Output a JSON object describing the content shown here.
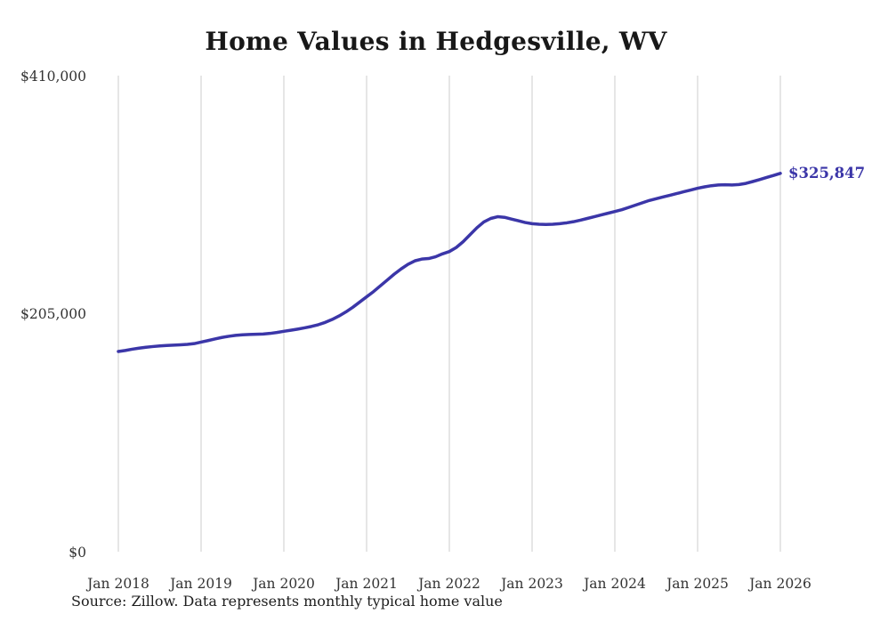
{
  "page": {
    "background": "#ffffff"
  },
  "chart_data": {
    "type": "line",
    "title": "Home Values in Hedgesville, WV",
    "source_note": "Source: Zillow. Data represents monthly typical home value",
    "series_name": "Monthly typical home value",
    "line_color": "#3b36a8",
    "grid_color": "#cccccc",
    "tick_color": "#333333",
    "end_label": "$325,847",
    "end_value": 325847,
    "ylim": [
      0,
      410000
    ],
    "grid": "vertical-only",
    "legend": "none",
    "y_ticks": [
      {
        "value": 410000,
        "label": "$410,000"
      },
      {
        "value": 205000,
        "label": "$205,000"
      },
      {
        "value": 0,
        "label": "$0"
      }
    ],
    "x_ticks": [
      "Jan 2018",
      "Jan 2019",
      "Jan 2020",
      "Jan 2021",
      "Jan 2022",
      "Jan 2023",
      "Jan 2024",
      "Jan 2025",
      "Jan 2026"
    ],
    "x_monthly_start": "Jan 2018",
    "x_monthly_end": "Jan 2026",
    "values": [
      172400,
      173300,
      174400,
      175300,
      176100,
      176700,
      177200,
      177600,
      177900,
      178200,
      178600,
      179200,
      180500,
      181800,
      183200,
      184500,
      185500,
      186300,
      186800,
      187100,
      187300,
      187500,
      188000,
      188800,
      189800,
      190700,
      191700,
      192800,
      194000,
      195500,
      197500,
      200000,
      203000,
      206500,
      210500,
      215000,
      219500,
      224000,
      229000,
      234000,
      239000,
      243500,
      247500,
      250500,
      252000,
      252500,
      254000,
      256500,
      258500,
      262000,
      267000,
      273000,
      279000,
      284000,
      287000,
      288500,
      288000,
      286500,
      285000,
      283500,
      282500,
      282000,
      281800,
      282000,
      282500,
      283200,
      284200,
      285500,
      287000,
      288500,
      290000,
      291500,
      293000,
      294500,
      296500,
      298500,
      300500,
      302500,
      304000,
      305500,
      307000,
      308500,
      310000,
      311500,
      313000,
      314200,
      315200,
      315800,
      316000,
      315800,
      316200,
      317200,
      318800,
      320500,
      322300,
      324000,
      325847
    ]
  }
}
